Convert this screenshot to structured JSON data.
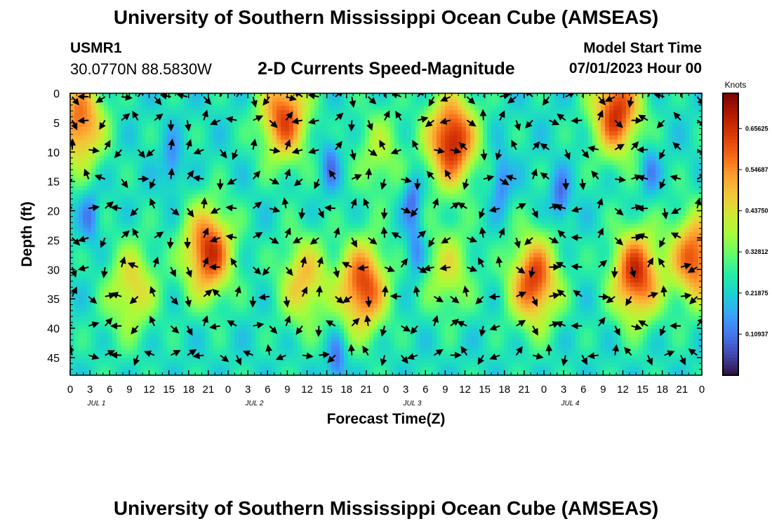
{
  "header": {
    "title": "University of Southern Mississippi Ocean Cube (AMSEAS)",
    "station_id": "USMR1",
    "station_coords": "30.0770N  88.5830W",
    "subtitle": "2-D Currents Speed-Magnitude",
    "model_label": "Model Start Time",
    "model_date": "07/01/2023 Hour 00"
  },
  "footer": {
    "title": "University of Southern Mississippi Ocean Cube (AMSEAS)"
  },
  "chart_data": {
    "type": "heatmap",
    "title": "2-D Currents Speed-Magnitude",
    "xlabel": "Forecast Time(Z)",
    "ylabel": "Depth (ft)",
    "x_range_hours": [
      0,
      96
    ],
    "x_ticks": [
      "0",
      "3",
      "6",
      "9",
      "12",
      "15",
      "18",
      "21",
      "0",
      "3",
      "6",
      "9",
      "12",
      "15",
      "18",
      "21",
      "0",
      "3",
      "6",
      "9",
      "12",
      "15",
      "18",
      "21",
      "0",
      "3",
      "6",
      "9",
      "12",
      "15",
      "18",
      "21",
      "0"
    ],
    "day_labels": [
      "JUL 1",
      "JUL 2",
      "JUL 3",
      "JUL 4"
    ],
    "y_range_ft": [
      0,
      48
    ],
    "y_ticks": [
      "0",
      "5",
      "10",
      "15",
      "20",
      "25",
      "30",
      "35",
      "40",
      "45"
    ],
    "colorbar": {
      "title": "Knots",
      "range": [
        0,
        0.75
      ],
      "ticks": [
        "0.10937",
        "0.21875",
        "0.32812",
        "0.43750",
        "0.54687",
        "0.65625"
      ],
      "tick_values": [
        0.109375,
        0.21875,
        0.328125,
        0.4375,
        0.546875,
        0.65625
      ],
      "colormap": [
        "#30123b",
        "#4145ab",
        "#4675ed",
        "#39a2fc",
        "#1bcfd4",
        "#24eca6",
        "#61fc6c",
        "#a4fc3b",
        "#d1e834",
        "#f3c63a",
        "#fe9b2d",
        "#f36315",
        "#d93806",
        "#b11901",
        "#7a0402"
      ]
    },
    "speed_blobs_knots": [
      {
        "hour": 1.5,
        "depth_ft": 5,
        "amp": 0.55
      },
      {
        "hour": 21,
        "depth_ft": 27,
        "amp": 0.62
      },
      {
        "hour": 9.5,
        "depth_ft": 33,
        "amp": 0.42
      },
      {
        "hour": 32.5,
        "depth_ft": 4,
        "amp": 0.58
      },
      {
        "hour": 35.5,
        "depth_ft": 32,
        "amp": 0.45
      },
      {
        "hour": 44.5,
        "depth_ft": 33,
        "amp": 0.6
      },
      {
        "hour": 47,
        "depth_ft": 10,
        "amp": 0.34
      },
      {
        "hour": 58,
        "depth_ft": 8,
        "amp": 0.66
      },
      {
        "hour": 57.5,
        "depth_ft": 30,
        "amp": 0.38
      },
      {
        "hour": 70.5,
        "depth_ft": 32,
        "amp": 0.6
      },
      {
        "hour": 83,
        "depth_ft": 3,
        "amp": 0.62
      },
      {
        "hour": 86,
        "depth_ft": 31,
        "amp": 0.62
      },
      {
        "hour": 95,
        "depth_ft": 28,
        "amp": 0.58
      },
      {
        "hour": 6,
        "depth_ft": 40,
        "amp": 0.22
      }
    ],
    "low_speed_zones_knots": [
      {
        "hour": 15.5,
        "depth_ft": 12,
        "amp": 0.15
      },
      {
        "hour": 3,
        "depth_ft": 21,
        "amp": 0.15
      },
      {
        "hour": 39.5,
        "depth_ft": 12,
        "amp": 0.14
      },
      {
        "hour": 52,
        "depth_ft": 18,
        "amp": 0.12
      },
      {
        "hour": 52.5,
        "depth_ft": 27,
        "amp": 0.14
      },
      {
        "hour": 88,
        "depth_ft": 13,
        "amp": 0.16
      },
      {
        "hour": 40.5,
        "depth_ft": 46,
        "amp": 0.12
      },
      {
        "hour": 65.5,
        "depth_ft": 15,
        "amp": 0.13
      },
      {
        "hour": 74.5,
        "depth_ft": 18,
        "amp": 0.12
      }
    ],
    "vector_grid": {
      "hour_step": 2.5,
      "depth_levels_ft": [
        0,
        4,
        9,
        14,
        19,
        24,
        29,
        34,
        39,
        44
      ]
    }
  }
}
